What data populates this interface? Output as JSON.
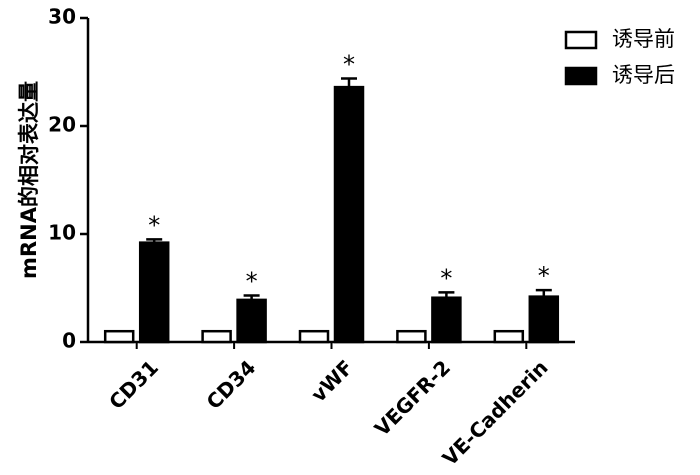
{
  "chart_data": {
    "type": "bar",
    "ylabel": "mRNA的相对表达量",
    "categories": [
      "CD31",
      "CD34",
      "vWF",
      "VEGFR-2",
      "VE-Cadherin"
    ],
    "series": [
      {
        "name": "诱导前",
        "color": "#ffffff",
        "values": [
          1,
          1,
          1,
          1,
          1
        ]
      },
      {
        "name": "诱导后",
        "color": "#000000",
        "values": [
          9.2,
          3.9,
          23.6,
          4.1,
          4.2
        ],
        "errors": [
          0.3,
          0.4,
          0.8,
          0.5,
          0.6
        ]
      }
    ],
    "annotations": [
      "*",
      "*",
      "*",
      "*",
      "*"
    ],
    "ylim": [
      0,
      30
    ],
    "yticks": [
      0,
      10,
      20,
      30
    ],
    "legend": "upper right"
  }
}
